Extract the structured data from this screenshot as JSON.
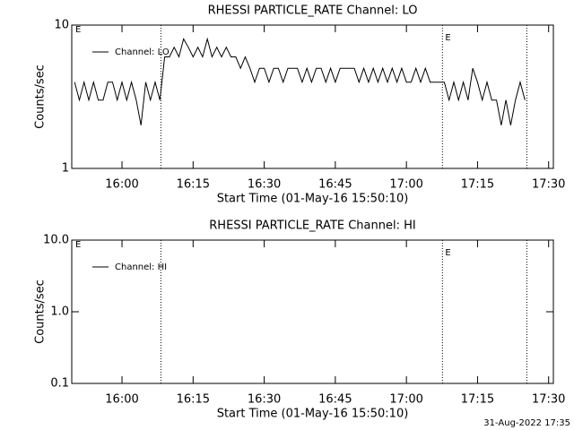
{
  "chart_data": [
    {
      "type": "line",
      "title": "RHESSI PARTICLE_RATE Channel: LO",
      "x_label": "Start Time (01-May-16 15:50:10)",
      "y_label": "Counts/sec",
      "x": [
        950,
        951,
        952,
        953,
        954,
        955,
        956,
        957,
        958,
        959,
        960,
        961,
        962,
        963,
        964,
        965,
        966,
        967,
        968,
        969,
        970,
        971,
        972,
        973,
        974,
        975,
        976,
        977,
        978,
        979,
        980,
        981,
        982,
        983,
        984,
        985,
        986,
        987,
        988,
        989,
        990,
        991,
        992,
        993,
        994,
        995,
        996,
        997,
        998,
        999,
        1000,
        1001,
        1002,
        1003,
        1004,
        1005,
        1006,
        1007,
        1008,
        1009,
        1010,
        1011,
        1012,
        1013,
        1014,
        1015,
        1016,
        1017,
        1018,
        1019,
        1020,
        1021,
        1022,
        1023,
        1024,
        1025,
        1026,
        1027,
        1028,
        1029,
        1030,
        1031,
        1032,
        1033,
        1034,
        1035,
        1036,
        1037,
        1038,
        1039,
        1040,
        1041,
        1042,
        1043,
        1044,
        1045
      ],
      "series": [
        {
          "name": "Channel: LO",
          "color": "#000000",
          "values": [
            4,
            3,
            4,
            3,
            4,
            3,
            3,
            4,
            4,
            3,
            4,
            3,
            4,
            3,
            2,
            4,
            3,
            4,
            3,
            6,
            6,
            7,
            6,
            8,
            7,
            6,
            7,
            6,
            8,
            6,
            7,
            6,
            7,
            6,
            6,
            5,
            6,
            5,
            4,
            5,
            5,
            4,
            5,
            5,
            4,
            5,
            5,
            5,
            4,
            5,
            4,
            5,
            5,
            4,
            5,
            4,
            5,
            5,
            5,
            5,
            4,
            5,
            4,
            5,
            4,
            5,
            4,
            5,
            4,
            5,
            4,
            4,
            5,
            4,
            5,
            4,
            4,
            4,
            4,
            3,
            4,
            3,
            4,
            3,
            5,
            4,
            3,
            4,
            3,
            3,
            2,
            3,
            2,
            3,
            4,
            3
          ]
        }
      ],
      "xlim": [
        949.4,
        1051
      ],
      "ylim": [
        1,
        10
      ],
      "log_y": true,
      "xticks": [
        {
          "value": 960,
          "label": "16:00"
        },
        {
          "value": 975,
          "label": "16:15"
        },
        {
          "value": 990,
          "label": "16:30"
        },
        {
          "value": 1005,
          "label": "16:45"
        },
        {
          "value": 1020,
          "label": "17:00"
        },
        {
          "value": 1035,
          "label": "17:15"
        },
        {
          "value": 1050,
          "label": "17:30"
        }
      ],
      "yticks": [
        1,
        10
      ],
      "vlines": [
        968.2,
        1027.6,
        1045.4
      ],
      "annotations": [
        "E",
        "E"
      ]
    },
    {
      "type": "line",
      "title": "RHESSI PARTICLE_RATE Channel: HI",
      "x_label": "Start Time (01-May-16 15:50:10)",
      "y_label": "Counts/sec",
      "x": [],
      "series": [
        {
          "name": "Channel: HI",
          "color": "#000000",
          "values": []
        }
      ],
      "xlim": [
        949.4,
        1051
      ],
      "ylim": [
        0.1,
        10
      ],
      "log_y": true,
      "xticks": [
        {
          "value": 960,
          "label": "16:00"
        },
        {
          "value": 975,
          "label": "16:15"
        },
        {
          "value": 990,
          "label": "16:30"
        },
        {
          "value": 1005,
          "label": "16:45"
        },
        {
          "value": 1020,
          "label": "17:00"
        },
        {
          "value": 1035,
          "label": "17:15"
        },
        {
          "value": 1050,
          "label": "17:30"
        }
      ],
      "yticks": [
        {
          "value": 0.1,
          "label": "0.1"
        },
        {
          "value": 1,
          "label": "1.0"
        },
        {
          "value": 10,
          "label": "10.0"
        }
      ],
      "vlines": [
        968.2,
        1027.6,
        1045.4
      ],
      "annotations": [
        "E",
        "E"
      ]
    }
  ],
  "footer": "31-Aug-2022 17:35"
}
